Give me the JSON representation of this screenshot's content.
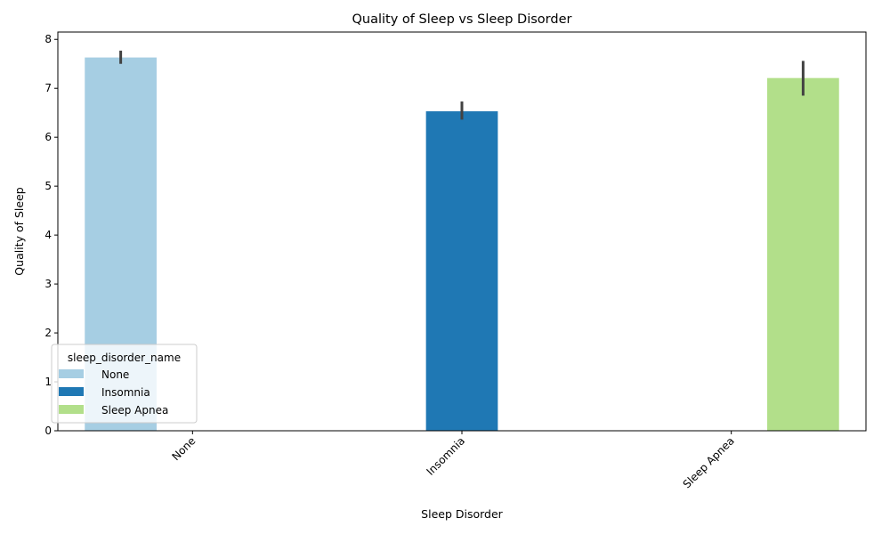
{
  "chart_data": {
    "type": "bar",
    "title": "Quality of Sleep vs Sleep Disorder",
    "xlabel": "Sleep Disorder",
    "ylabel": "Quality of Sleep",
    "categories": [
      "None",
      "Insomnia",
      "Sleep Apnea"
    ],
    "ylim": [
      0,
      8.15
    ],
    "yticks": [
      0,
      1,
      2,
      3,
      4,
      5,
      6,
      7,
      8
    ],
    "legend": {
      "title": "sleep_disorder_name",
      "placement": "lower-left",
      "entries": [
        "None",
        "Insomnia",
        "Sleep Apnea"
      ]
    },
    "series": [
      {
        "name": "None",
        "color": "#a6cee3",
        "values": [
          7.63,
          null,
          null
        ],
        "ci_low": [
          7.5,
          null,
          null
        ],
        "ci_high": [
          7.77,
          null,
          null
        ]
      },
      {
        "name": "Insomnia",
        "color": "#1f78b4",
        "values": [
          null,
          6.53,
          null
        ],
        "ci_low": [
          null,
          6.36,
          null
        ],
        "ci_high": [
          null,
          6.73,
          null
        ]
      },
      {
        "name": "Sleep Apnea",
        "color": "#b2df8a",
        "values": [
          null,
          null,
          7.21
        ],
        "ci_low": [
          null,
          null,
          6.85
        ],
        "ci_high": [
          null,
          null,
          7.56
        ]
      }
    ],
    "errorbar_color": "#424242",
    "grid": false
  }
}
